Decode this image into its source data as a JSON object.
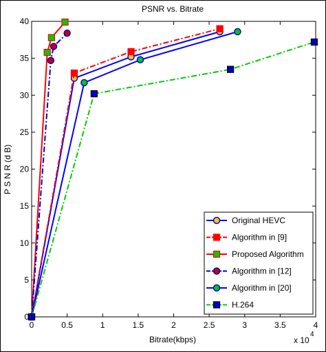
{
  "chart_data": {
    "type": "line",
    "title": "PSNR vs. Bitrate",
    "xlabel": "Bitrate(kbps)",
    "ylabel": "P S N R (d B)",
    "x_multiplier_label": "x 10",
    "x_multiplier_exponent": "4",
    "xlim": [
      0,
      4
    ],
    "ylim": [
      0,
      40
    ],
    "x_ticks": [
      0,
      0.5,
      1,
      1.5,
      2,
      2.5,
      3,
      3.5,
      4
    ],
    "x_tick_labels": [
      "0",
      "0.5",
      "1",
      "1.5",
      "2",
      "2.5",
      "3",
      "3.5",
      "4"
    ],
    "y_ticks": [
      0,
      5,
      10,
      15,
      20,
      25,
      30,
      35,
      40
    ],
    "y_tick_labels": [
      "0",
      "5",
      "10",
      "15",
      "20",
      "25",
      "30",
      "35",
      "40"
    ],
    "grid": false,
    "legend_position": "bottom-right",
    "series": [
      {
        "name": "Original HEVC",
        "color": "#0000ff",
        "line_style": "solid",
        "marker": "circle",
        "marker_fill": "#ffcc00",
        "x": [
          0,
          0.6,
          1.4,
          2.65
        ],
        "y": [
          0,
          32.3,
          35.2,
          38.6
        ]
      },
      {
        "name": "Algorithm in [9]",
        "color": "#ff0000",
        "line_style": "dashdot",
        "marker": "square",
        "marker_fill": "#ff0000",
        "x": [
          0,
          0.6,
          1.4,
          2.65
        ],
        "y": [
          0,
          33,
          35.9,
          39
        ]
      },
      {
        "name": "Proposed Algorithm",
        "color": "#ff0000",
        "line_style": "solid",
        "marker": "square",
        "marker_fill": "#00cc00",
        "x": [
          0,
          0.22,
          0.28,
          0.47
        ],
        "y": [
          0,
          35.8,
          37.8,
          39.9
        ]
      },
      {
        "name": "Algorithm in [12]",
        "color": "#0000cc",
        "line_style": "dashdot",
        "marker": "circle",
        "marker_fill": "#cc0000",
        "x": [
          0,
          0.27,
          0.31,
          0.5
        ],
        "y": [
          0,
          34.7,
          36.6,
          38.4
        ]
      },
      {
        "name": "Algorithm in [20]",
        "color": "#0000ff",
        "line_style": "solid",
        "marker": "circle",
        "marker_fill": "#00cc00",
        "x": [
          0,
          0.74,
          1.53,
          2.9
        ],
        "y": [
          0,
          31.7,
          34.8,
          38.6
        ]
      },
      {
        "name": "H.264",
        "color": "#00cc00",
        "line_style": "dashdot",
        "marker": "square",
        "marker_fill": "#0000cc",
        "x": [
          0,
          0.88,
          2.8,
          3.98
        ],
        "y": [
          0,
          30.2,
          33.5,
          37.2
        ]
      }
    ]
  }
}
